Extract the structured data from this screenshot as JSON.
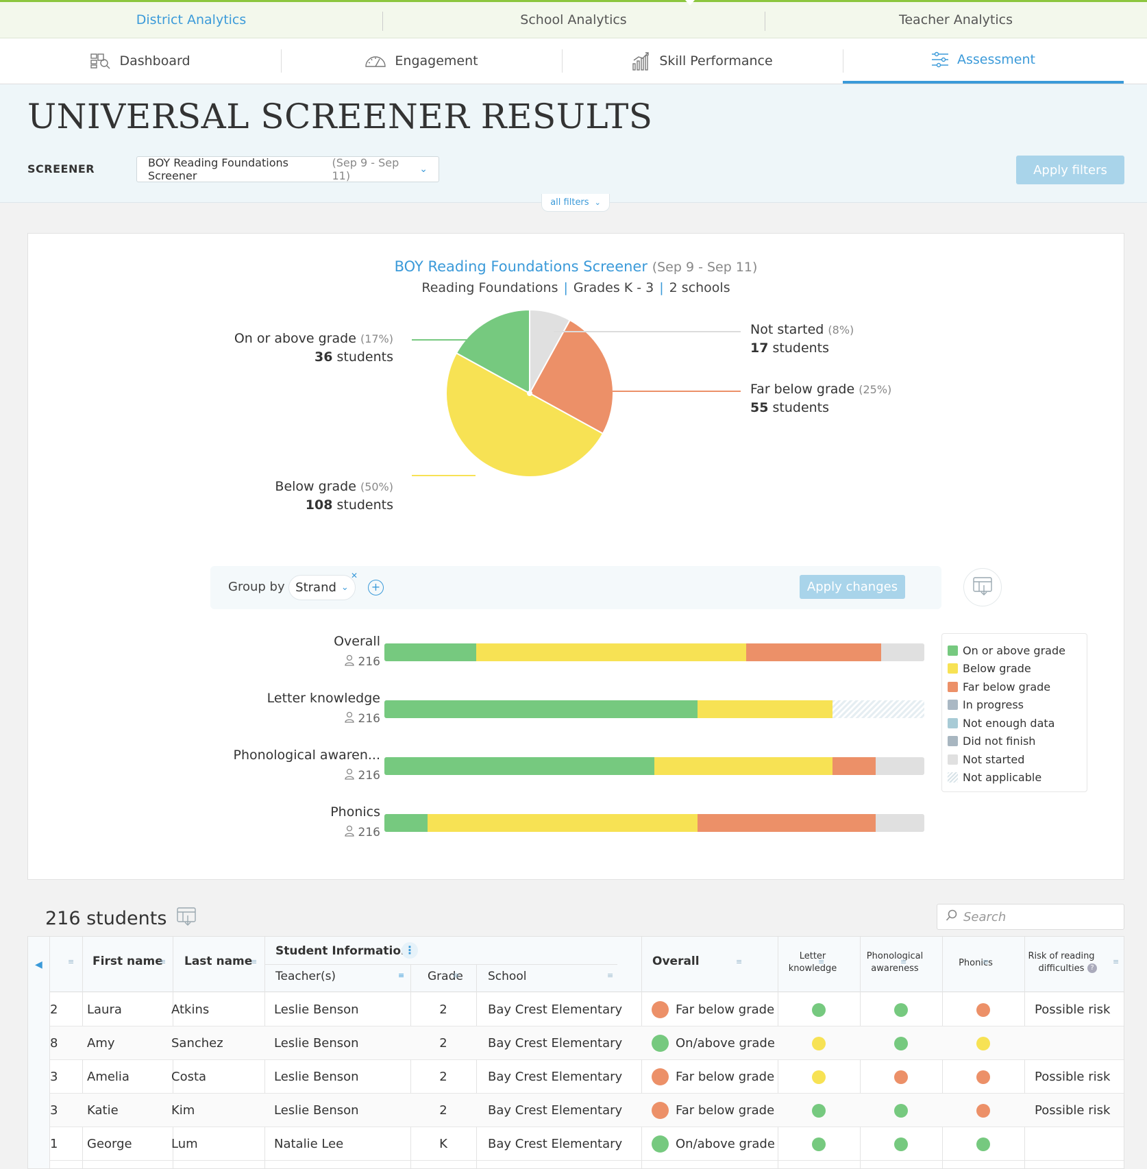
{
  "top_tabs": [
    {
      "label": "District Analytics",
      "active": true
    },
    {
      "label": "School Analytics",
      "active": false
    },
    {
      "label": "Teacher Analytics",
      "active": false
    }
  ],
  "sub_tabs": [
    {
      "label": "Dashboard",
      "icon": "dashboard-icon",
      "active": false
    },
    {
      "label": "Engagement",
      "icon": "gauge-icon",
      "active": false
    },
    {
      "label": "Skill Performance",
      "icon": "bar-chart-icon",
      "active": false
    },
    {
      "label": "Assessment",
      "icon": "sliders-icon",
      "active": true
    }
  ],
  "header": {
    "title": "UNIVERSAL SCREENER RESULTS",
    "screener_label": "SCREENER",
    "screener_value": "BOY Reading Foundations Screener",
    "screener_range": "(Sep 9 - Sep 11)",
    "apply_filters": "Apply filters",
    "all_filters": "all filters"
  },
  "summary": {
    "name": "BOY Reading Foundations Screener",
    "range": "(Sep 9 - Sep 11)",
    "subject": "Reading Foundations",
    "grades": "Grades K - 3",
    "schools": "2 schools"
  },
  "chart_data": [
    {
      "type": "pie",
      "slices": [
        {
          "label": "Not started",
          "pct_label": "(8%)",
          "count": 17,
          "count_label": "students",
          "value": 8,
          "color": "#e0e0e0"
        },
        {
          "label": "Far below grade",
          "pct_label": "(25%)",
          "count": 55,
          "count_label": "students",
          "value": 25,
          "color": "#ec9068"
        },
        {
          "label": "Below grade",
          "pct_label": "(50%)",
          "count": 108,
          "count_label": "students",
          "value": 50,
          "color": "#f7e254"
        },
        {
          "label": "On or above grade",
          "pct_label": "(17%)",
          "count": 36,
          "count_label": "students",
          "value": 17,
          "color": "#76c97f"
        }
      ]
    },
    {
      "type": "bar",
      "stacked": true,
      "orientation": "horizontal",
      "categories": [
        "Overall",
        "Letter knowledge",
        "Phonological awaren...",
        "Phonics"
      ],
      "counts": [
        "216",
        "216",
        "216",
        "216"
      ],
      "series": [
        {
          "name": "On or above grade",
          "color": "#76c97f",
          "values": [
            17,
            58,
            50,
            8
          ]
        },
        {
          "name": "Below grade",
          "color": "#f7e254",
          "values": [
            50,
            25,
            33,
            50
          ]
        },
        {
          "name": "Far below grade",
          "color": "#ec9068",
          "values": [
            25,
            0,
            8,
            33
          ]
        },
        {
          "name": "Not started",
          "color": "#e0e0e0",
          "values": [
            8,
            0,
            8,
            8
          ]
        },
        {
          "name": "Not applicable",
          "color": "hatch",
          "values": [
            0,
            17,
            0,
            0
          ]
        }
      ]
    }
  ],
  "group_by": {
    "label": "Group by",
    "chip": "Strand",
    "apply_changes": "Apply changes"
  },
  "legend": [
    {
      "label": "On or above grade",
      "color": "#76c97f"
    },
    {
      "label": "Below grade",
      "color": "#f7e254"
    },
    {
      "label": "Far below grade",
      "color": "#ec9068"
    },
    {
      "label": "In progress",
      "color": "#aab8c4"
    },
    {
      "label": "Not enough data",
      "color": "#a8cbd6"
    },
    {
      "label": "Did not finish",
      "color": "#a8b6c0"
    },
    {
      "label": "Not started",
      "color": "#e0e0e0"
    },
    {
      "label": "Not applicable",
      "color": "hatch"
    }
  ],
  "students": {
    "count_label": "216 students",
    "search_placeholder": "Search",
    "headers": {
      "first_name": "First name",
      "last_name": "Last name",
      "group": "Student Information",
      "teachers": "Teacher(s)",
      "grade": "Grade",
      "school": "School",
      "overall": "Overall",
      "letter": "Letter knowledge",
      "phono": "Phonological awareness",
      "phonics": "Phonics",
      "risk": "Risk of reading difficulties"
    },
    "rows": [
      {
        "id": "2",
        "first": "Laura",
        "last": "Atkins",
        "teacher": "Leslie Benson",
        "grade": "2",
        "school": "Bay Crest Elementary",
        "overall": "Far below grade",
        "overall_color": "#ec9068",
        "letter": "#76c97f",
        "phono": "#76c97f",
        "phonics": "#ec9068",
        "risk": "Possible risk"
      },
      {
        "id": "8",
        "first": "Amy",
        "last": "Sanchez",
        "teacher": "Leslie Benson",
        "grade": "2",
        "school": "Bay Crest Elementary",
        "overall": "On/above grade",
        "overall_color": "#76c97f",
        "letter": "#f7e254",
        "phono": "#76c97f",
        "phonics": "#f7e254",
        "risk": ""
      },
      {
        "id": "3",
        "first": "Amelia",
        "last": "Costa",
        "teacher": "Leslie Benson",
        "grade": "2",
        "school": "Bay Crest Elementary",
        "overall": "Far below grade",
        "overall_color": "#ec9068",
        "letter": "#f7e254",
        "phono": "#ec9068",
        "phonics": "#ec9068",
        "risk": "Possible risk"
      },
      {
        "id": "3",
        "first": "Katie",
        "last": "Kim",
        "teacher": "Leslie Benson",
        "grade": "2",
        "school": "Bay Crest Elementary",
        "overall": "Far below grade",
        "overall_color": "#ec9068",
        "letter": "#76c97f",
        "phono": "#76c97f",
        "phonics": "#ec9068",
        "risk": "Possible risk"
      },
      {
        "id": "1",
        "first": "George",
        "last": "Lum",
        "teacher": "Natalie Lee",
        "grade": "K",
        "school": "Bay Crest Elementary",
        "overall": "On/above grade",
        "overall_color": "#76c97f",
        "letter": "#76c97f",
        "phono": "#76c97f",
        "phonics": "#76c97f",
        "risk": ""
      }
    ]
  }
}
